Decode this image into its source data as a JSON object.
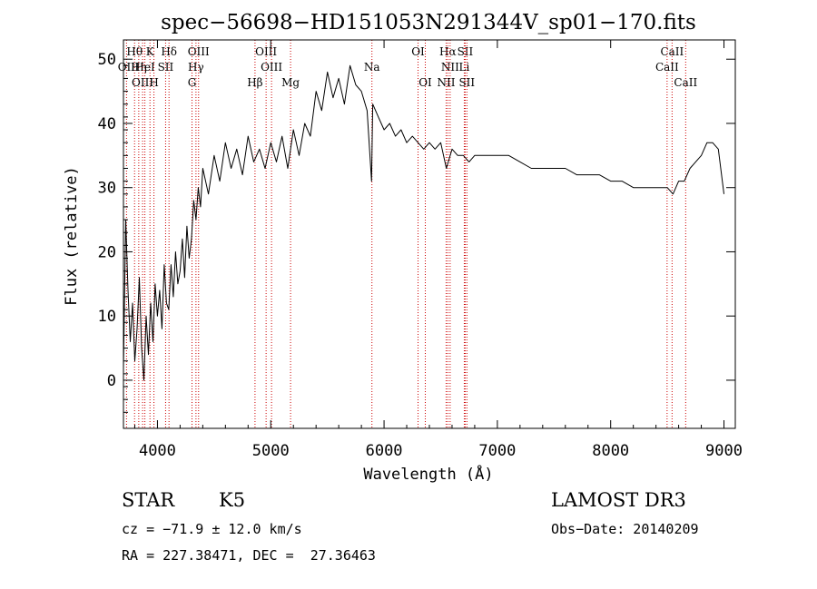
{
  "chart_data": {
    "type": "line",
    "title": "spec−56698−HD151053N291344V_sp01−170.fits",
    "xlabel": "Wavelength (Å)",
    "ylabel": "Flux (relative)",
    "xlim": [
      3700,
      9100
    ],
    "ylim": [
      -7.5,
      53
    ],
    "x_ticks": [
      4000,
      5000,
      6000,
      7000,
      8000,
      9000
    ],
    "y_ticks": [
      0,
      10,
      20,
      30,
      40,
      50
    ],
    "line_color": "#000000",
    "marker_color": "#cc0000",
    "series": [
      {
        "name": "flux",
        "x": [
          3700,
          3720,
          3740,
          3760,
          3780,
          3800,
          3820,
          3840,
          3860,
          3880,
          3900,
          3920,
          3940,
          3960,
          3980,
          4000,
          4020,
          4040,
          4060,
          4080,
          4100,
          4120,
          4140,
          4160,
          4180,
          4200,
          4220,
          4240,
          4260,
          4280,
          4300,
          4320,
          4340,
          4360,
          4380,
          4400,
          4450,
          4500,
          4550,
          4600,
          4650,
          4700,
          4750,
          4800,
          4850,
          4900,
          4950,
          5000,
          5050,
          5100,
          5150,
          5200,
          5250,
          5300,
          5350,
          5400,
          5450,
          5500,
          5550,
          5600,
          5650,
          5700,
          5750,
          5800,
          5850,
          5890,
          5900,
          5950,
          6000,
          6050,
          6100,
          6150,
          6200,
          6250,
          6300,
          6350,
          6400,
          6450,
          6500,
          6550,
          6600,
          6650,
          6700,
          6750,
          6800,
          6900,
          7000,
          7100,
          7200,
          7300,
          7400,
          7500,
          7600,
          7700,
          7800,
          7900,
          8000,
          8100,
          8200,
          8300,
          8400,
          8500,
          8550,
          8600,
          8650,
          8700,
          8750,
          8800,
          8850,
          8900,
          8950,
          9000
        ],
        "y": [
          2,
          25,
          14,
          6,
          12,
          3,
          8,
          16,
          5,
          0,
          10,
          4,
          12,
          6,
          15,
          10,
          14,
          8,
          18,
          12,
          11,
          18,
          13,
          20,
          15,
          17,
          22,
          16,
          24,
          19,
          22,
          28,
          25,
          30,
          27,
          33,
          29,
          35,
          31,
          37,
          33,
          36,
          32,
          38,
          34,
          36,
          33,
          37,
          34,
          38,
          33,
          39,
          35,
          40,
          38,
          45,
          42,
          48,
          44,
          47,
          43,
          49,
          46,
          45,
          42,
          31,
          43,
          41,
          39,
          40,
          38,
          39,
          37,
          38,
          37,
          36,
          37,
          36,
          37,
          33,
          36,
          35,
          35,
          34,
          35,
          35,
          35,
          35,
          34,
          33,
          33,
          33,
          33,
          32,
          32,
          32,
          31,
          31,
          30,
          30,
          30,
          30,
          29,
          31,
          31,
          33,
          34,
          35,
          37,
          37,
          36,
          29
        ]
      }
    ],
    "lines": [
      {
        "label": "Hθ",
        "x": 3798,
        "row": 1
      },
      {
        "label": "K",
        "x": 3934,
        "row": 1
      },
      {
        "label": "Hδ",
        "x": 4102,
        "row": 1
      },
      {
        "label": "OIII",
        "x": 4363,
        "row": 1
      },
      {
        "label": "OIII",
        "x": 4959,
        "row": 1
      },
      {
        "label": "OI",
        "x": 6300,
        "row": 1
      },
      {
        "label": "Hα",
        "x": 6563,
        "row": 1
      },
      {
        "label": "SII",
        "x": 6716,
        "row": 1
      },
      {
        "label": "CaII",
        "x": 8542,
        "row": 1
      },
      {
        "label": "OII",
        "x": 3727,
        "row": 2
      },
      {
        "label": "Hη",
        "x": 3835,
        "row": 2
      },
      {
        "label": "HeI",
        "x": 3889,
        "row": 2
      },
      {
        "label": "SII",
        "x": 4072,
        "row": 2
      },
      {
        "label": "Hγ",
        "x": 4340,
        "row": 2
      },
      {
        "label": "OIII",
        "x": 5007,
        "row": 2
      },
      {
        "label": "Na",
        "x": 5893,
        "row": 2
      },
      {
        "label": "NII",
        "x": 6583,
        "row": 2
      },
      {
        "label": "Li",
        "x": 6708,
        "row": 2
      },
      {
        "label": "CaII",
        "x": 8498,
        "row": 2
      },
      {
        "label": "OIII",
        "x": 3869,
        "row": 3
      },
      {
        "label": "H",
        "x": 3969,
        "row": 3
      },
      {
        "label": "G",
        "x": 4305,
        "row": 3
      },
      {
        "label": "Hβ",
        "x": 4861,
        "row": 3
      },
      {
        "label": "Mg",
        "x": 5175,
        "row": 3
      },
      {
        "label": "OI",
        "x": 6364,
        "row": 3
      },
      {
        "label": "NII",
        "x": 6548,
        "row": 3
      },
      {
        "label": "SII",
        "x": 6731,
        "row": 3
      },
      {
        "label": "CaII",
        "x": 8662,
        "row": 3
      }
    ]
  },
  "info": {
    "object_class": "STAR",
    "subclass": "K5",
    "survey": "LAMOST DR3",
    "velocity": "cz = −71.9 ± 12.0 km/s",
    "obs_date": "Obs−Date: 20140209",
    "coords": "RA = 227.38471, DEC =  27.36463"
  }
}
